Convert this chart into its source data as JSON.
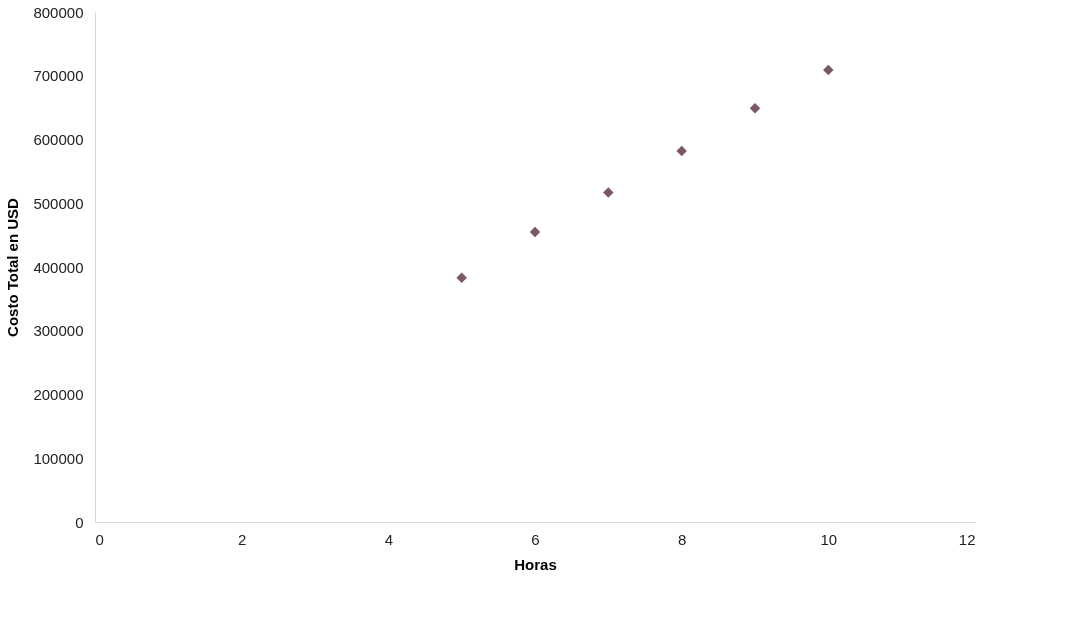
{
  "chart_data": {
    "type": "scatter",
    "xlabel": "Horas",
    "ylabel": "Costo Total en USD",
    "x": [
      5,
      6,
      7,
      8,
      9,
      10
    ],
    "series": [
      {
        "color": "#7a5865",
        "values": [
          383000,
          455000,
          517000,
          582000,
          649000,
          709000
        ]
      }
    ],
    "xlim": [
      0,
      12
    ],
    "xticks": [
      0,
      2,
      4,
      6,
      8,
      10,
      12
    ],
    "ylim": [
      0,
      800000
    ],
    "yticks": [
      0,
      100000,
      200000,
      300000,
      400000,
      500000,
      600000,
      700000,
      800000
    ],
    "grid": false,
    "marker": "diamond"
  }
}
